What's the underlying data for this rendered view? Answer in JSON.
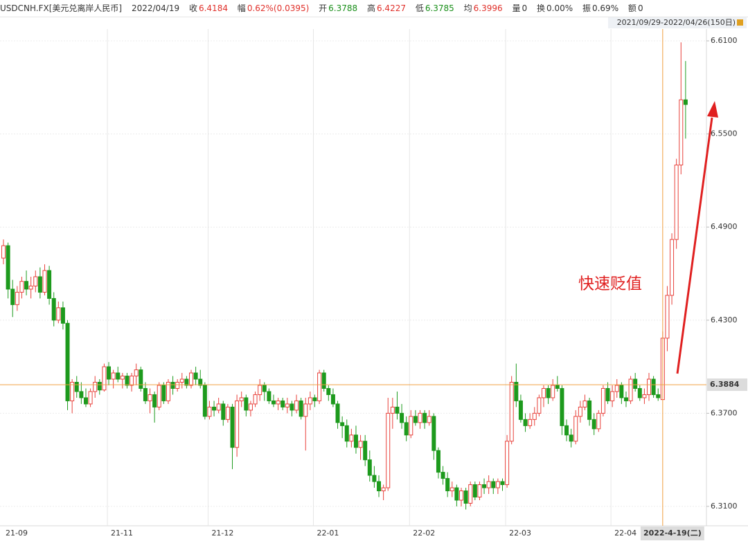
{
  "header": {
    "symbol": "USDCNH.FX[美元兑离岸人民币]",
    "date": "2022/04/19",
    "close_label": "收",
    "close": 6.4184,
    "change_label": "幅",
    "change": "0.62%(0.0395)",
    "open_label": "开",
    "open": 6.3788,
    "high_label": "高",
    "high": 6.4227,
    "low_label": "低",
    "low": 6.3785,
    "avg_label": "均",
    "avg": 6.3996,
    "volume_label": "量",
    "volume": 0,
    "turnover_label": "换",
    "turnover": "0.00%",
    "amplitude_label": "振",
    "amplitude": "0.69%",
    "amount_label": "额",
    "amount": 0
  },
  "chart_data": {
    "type": "candlestick",
    "range_label": "2021/09/29-2022/04/26(150日)",
    "up_color": "#e8403a",
    "down_color": "#1d9a1d",
    "grid": true,
    "annotation": "快速贬值",
    "ylim": [
      6.2975,
      6.6176
    ],
    "yticks": [
      {
        "value": 6.31,
        "label": "6.3100"
      },
      {
        "value": 6.37,
        "label": "6.3700"
      },
      {
        "value": 6.43,
        "label": "6.4300"
      },
      {
        "value": 6.49,
        "label": "6.4900"
      },
      {
        "value": 6.55,
        "label": "6.5500"
      },
      {
        "value": 6.61,
        "label": "6.6100"
      }
    ],
    "crosshair": {
      "index": 144,
      "value": 6.3884,
      "value_label": "6.3884",
      "date_label": "2022-4-19(二)"
    },
    "categories": [
      "21-09",
      null,
      null,
      null,
      null,
      null,
      null,
      null,
      null,
      null,
      null,
      null,
      null,
      null,
      null,
      null,
      null,
      null,
      null,
      null,
      null,
      null,
      null,
      "21-11",
      null,
      null,
      null,
      null,
      null,
      null,
      null,
      null,
      null,
      null,
      null,
      null,
      null,
      null,
      null,
      null,
      null,
      null,
      null,
      null,
      null,
      "21-12",
      null,
      null,
      null,
      null,
      null,
      null,
      null,
      null,
      null,
      null,
      null,
      null,
      null,
      null,
      null,
      null,
      null,
      null,
      null,
      null,
      null,
      null,
      "22-01",
      null,
      null,
      null,
      null,
      null,
      null,
      null,
      null,
      null,
      null,
      null,
      null,
      null,
      null,
      null,
      null,
      null,
      null,
      null,
      null,
      "22-02",
      null,
      null,
      null,
      null,
      null,
      null,
      null,
      null,
      null,
      null,
      null,
      null,
      null,
      null,
      null,
      null,
      null,
      null,
      null,
      null,
      "22-03",
      null,
      null,
      null,
      null,
      null,
      null,
      null,
      null,
      null,
      null,
      null,
      null,
      null,
      null,
      null,
      null,
      null,
      null,
      null,
      null,
      null,
      null,
      "22-04",
      null,
      null,
      null,
      null,
      null,
      null,
      null,
      null,
      null,
      null,
      null,
      null,
      null,
      null,
      null,
      null
    ],
    "ohlc": [
      [
        6.47,
        6.482,
        6.466,
        6.478
      ],
      [
        6.478,
        6.48,
        6.444,
        6.45
      ],
      [
        6.45,
        6.456,
        6.432,
        6.44
      ],
      [
        6.44,
        6.452,
        6.436,
        6.448
      ],
      [
        6.448,
        6.458,
        6.444,
        6.455
      ],
      [
        6.455,
        6.462,
        6.446,
        6.45
      ],
      [
        6.45,
        6.458,
        6.444,
        6.452
      ],
      [
        6.452,
        6.462,
        6.448,
        6.458
      ],
      [
        6.458,
        6.464,
        6.444,
        6.448
      ],
      [
        6.448,
        6.466,
        6.446,
        6.462
      ],
      [
        6.462,
        6.465,
        6.44,
        6.444
      ],
      [
        6.444,
        6.448,
        6.426,
        6.43
      ],
      [
        6.43,
        6.442,
        6.428,
        6.438
      ],
      [
        6.438,
        6.442,
        6.424,
        6.428
      ],
      [
        6.428,
        6.43,
        6.372,
        6.378
      ],
      [
        6.378,
        6.392,
        6.37,
        6.39
      ],
      [
        6.39,
        6.394,
        6.38,
        6.384
      ],
      [
        6.384,
        6.39,
        6.376,
        6.38
      ],
      [
        6.38,
        6.386,
        6.374,
        6.376
      ],
      [
        6.376,
        6.386,
        6.374,
        6.384
      ],
      [
        6.384,
        6.394,
        6.38,
        6.39
      ],
      [
        6.39,
        6.392,
        6.382,
        6.385
      ],
      [
        6.385,
        6.402,
        6.384,
        6.4
      ],
      [
        6.4,
        6.403,
        6.388,
        6.392
      ],
      [
        6.392,
        6.398,
        6.386,
        6.396
      ],
      [
        6.396,
        6.4,
        6.39,
        6.392
      ],
      [
        6.392,
        6.396,
        6.386,
        6.394
      ],
      [
        6.394,
        6.396,
        6.386,
        6.388
      ],
      [
        6.388,
        6.396,
        6.384,
        6.394
      ],
      [
        6.394,
        6.402,
        6.388,
        6.398
      ],
      [
        6.398,
        6.4,
        6.384,
        6.386
      ],
      [
        6.386,
        6.39,
        6.376,
        6.378
      ],
      [
        6.378,
        6.386,
        6.37,
        6.382
      ],
      [
        6.382,
        6.384,
        6.364,
        6.374
      ],
      [
        6.374,
        6.39,
        6.372,
        6.388
      ],
      [
        6.388,
        6.39,
        6.376,
        6.378
      ],
      [
        6.378,
        6.392,
        6.376,
        6.39
      ],
      [
        6.39,
        6.394,
        6.382,
        6.386
      ],
      [
        6.386,
        6.392,
        6.384,
        6.39
      ],
      [
        6.39,
        6.396,
        6.386,
        6.392
      ],
      [
        6.392,
        6.394,
        6.386,
        6.388
      ],
      [
        6.388,
        6.398,
        6.386,
        6.396
      ],
      [
        6.396,
        6.4,
        6.388,
        6.392
      ],
      [
        6.392,
        6.398,
        6.386,
        6.388
      ],
      [
        6.388,
        6.39,
        6.366,
        6.368
      ],
      [
        6.368,
        6.378,
        6.366,
        6.374
      ],
      [
        6.374,
        6.378,
        6.368,
        6.372
      ],
      [
        6.372,
        6.38,
        6.37,
        6.376
      ],
      [
        6.376,
        6.378,
        6.362,
        6.366
      ],
      [
        6.366,
        6.376,
        6.364,
        6.374
      ],
      [
        6.374,
        6.376,
        6.334,
        6.348
      ],
      [
        6.348,
        6.382,
        6.342,
        6.378
      ],
      [
        6.378,
        6.384,
        6.374,
        6.38
      ],
      [
        6.38,
        6.382,
        6.368,
        6.372
      ],
      [
        6.372,
        6.378,
        6.368,
        6.376
      ],
      [
        6.376,
        6.384,
        6.374,
        6.382
      ],
      [
        6.382,
        6.392,
        6.378,
        6.388
      ],
      [
        6.388,
        6.39,
        6.378,
        6.384
      ],
      [
        6.384,
        6.386,
        6.376,
        6.378
      ],
      [
        6.378,
        6.382,
        6.374,
        6.376
      ],
      [
        6.376,
        6.38,
        6.372,
        6.378
      ],
      [
        6.378,
        6.38,
        6.372,
        6.374
      ],
      [
        6.374,
        6.38,
        6.37,
        6.376
      ],
      [
        6.376,
        6.378,
        6.368,
        6.372
      ],
      [
        6.372,
        6.382,
        6.37,
        6.378
      ],
      [
        6.378,
        6.38,
        6.366,
        6.368
      ],
      [
        6.368,
        6.38,
        6.346,
        6.376
      ],
      [
        6.376,
        6.384,
        6.372,
        6.38
      ],
      [
        6.38,
        6.382,
        6.374,
        6.378
      ],
      [
        6.378,
        6.398,
        6.376,
        6.396
      ],
      [
        6.396,
        6.398,
        6.384,
        6.386
      ],
      [
        6.386,
        6.388,
        6.378,
        6.382
      ],
      [
        6.382,
        6.386,
        6.374,
        6.376
      ],
      [
        6.376,
        6.378,
        6.36,
        6.364
      ],
      [
        6.364,
        6.368,
        6.354,
        6.362
      ],
      [
        6.362,
        6.366,
        6.348,
        6.352
      ],
      [
        6.352,
        6.36,
        6.348,
        6.356
      ],
      [
        6.356,
        6.362,
        6.344,
        6.348
      ],
      [
        6.348,
        6.356,
        6.34,
        6.352
      ],
      [
        6.352,
        6.356,
        6.336,
        6.34
      ],
      [
        6.34,
        6.346,
        6.326,
        6.33
      ],
      [
        6.33,
        6.336,
        6.322,
        6.326
      ],
      [
        6.326,
        6.33,
        6.316,
        6.32
      ],
      [
        6.32,
        6.324,
        6.314,
        6.322
      ],
      [
        6.322,
        6.38,
        6.32,
        6.37
      ],
      [
        6.37,
        6.38,
        6.36,
        6.374
      ],
      [
        6.374,
        6.384,
        6.366,
        6.37
      ],
      [
        6.37,
        6.376,
        6.36,
        6.364
      ],
      [
        6.364,
        6.368,
        6.352,
        6.356
      ],
      [
        6.356,
        6.372,
        6.354,
        6.368
      ],
      [
        6.368,
        6.372,
        6.362,
        6.364
      ],
      [
        6.364,
        6.372,
        6.36,
        6.37
      ],
      [
        6.37,
        6.372,
        6.36,
        6.364
      ],
      [
        6.364,
        6.372,
        6.362,
        6.368
      ],
      [
        6.368,
        6.37,
        6.34,
        6.346
      ],
      [
        6.346,
        6.348,
        6.328,
        6.332
      ],
      [
        6.332,
        6.336,
        6.324,
        6.328
      ],
      [
        6.328,
        6.332,
        6.316,
        6.32
      ],
      [
        6.32,
        6.326,
        6.316,
        6.322
      ],
      [
        6.322,
        6.324,
        6.31,
        6.314
      ],
      [
        6.314,
        6.322,
        6.31,
        6.32
      ],
      [
        6.32,
        6.322,
        6.308,
        6.312
      ],
      [
        6.312,
        6.326,
        6.31,
        6.324
      ],
      [
        6.324,
        6.326,
        6.314,
        6.316
      ],
      [
        6.316,
        6.326,
        6.314,
        6.324
      ],
      [
        6.324,
        6.328,
        6.318,
        6.322
      ],
      [
        6.322,
        6.33,
        6.318,
        6.326
      ],
      [
        6.326,
        6.328,
        6.318,
        6.322
      ],
      [
        6.322,
        6.328,
        6.318,
        6.326
      ],
      [
        6.326,
        6.328,
        6.32,
        6.324
      ],
      [
        6.324,
        6.356,
        6.322,
        6.352
      ],
      [
        6.352,
        6.394,
        6.35,
        6.39
      ],
      [
        6.39,
        6.402,
        6.374,
        6.378
      ],
      [
        6.378,
        6.382,
        6.364,
        6.366
      ],
      [
        6.366,
        6.37,
        6.358,
        6.362
      ],
      [
        6.362,
        6.37,
        6.36,
        6.366
      ],
      [
        6.366,
        6.374,
        6.362,
        6.37
      ],
      [
        6.37,
        6.382,
        6.368,
        6.38
      ],
      [
        6.38,
        6.388,
        6.374,
        6.386
      ],
      [
        6.386,
        6.388,
        6.376,
        6.38
      ],
      [
        6.38,
        6.392,
        6.378,
        6.388
      ],
      [
        6.388,
        6.394,
        6.384,
        6.386
      ],
      [
        6.386,
        6.388,
        6.356,
        6.362
      ],
      [
        6.362,
        6.366,
        6.352,
        6.356
      ],
      [
        6.356,
        6.36,
        6.348,
        6.352
      ],
      [
        6.352,
        6.372,
        6.35,
        6.368
      ],
      [
        6.368,
        6.378,
        6.364,
        6.374
      ],
      [
        6.374,
        6.382,
        6.372,
        6.378
      ],
      [
        6.378,
        6.38,
        6.362,
        6.366
      ],
      [
        6.366,
        6.37,
        6.356,
        6.36
      ],
      [
        6.36,
        6.372,
        6.358,
        6.37
      ],
      [
        6.37,
        6.388,
        6.368,
        6.386
      ],
      [
        6.386,
        6.39,
        6.376,
        6.378
      ],
      [
        6.378,
        6.388,
        6.374,
        6.384
      ],
      [
        6.384,
        6.392,
        6.38,
        6.388
      ],
      [
        6.388,
        6.39,
        6.376,
        6.38
      ],
      [
        6.38,
        6.384,
        6.374,
        6.378
      ],
      [
        6.378,
        6.394,
        6.376,
        6.392
      ],
      [
        6.392,
        6.396,
        6.384,
        6.386
      ],
      [
        6.386,
        6.388,
        6.378,
        6.38
      ],
      [
        6.38,
        6.386,
        6.376,
        6.382
      ],
      [
        6.382,
        6.396,
        6.378,
        6.392
      ],
      [
        6.392,
        6.394,
        6.38,
        6.382
      ],
      [
        6.382,
        6.386,
        6.378,
        6.38
      ],
      [
        6.3788,
        6.4227,
        6.3785,
        6.4184
      ],
      [
        6.4184,
        6.452,
        6.41,
        6.446
      ],
      [
        6.446,
        6.486,
        6.44,
        6.482
      ],
      [
        6.482,
        6.534,
        6.476,
        6.53
      ],
      [
        6.53,
        6.609,
        6.524,
        6.572
      ],
      [
        6.572,
        6.597,
        6.547,
        6.569
      ]
    ]
  }
}
